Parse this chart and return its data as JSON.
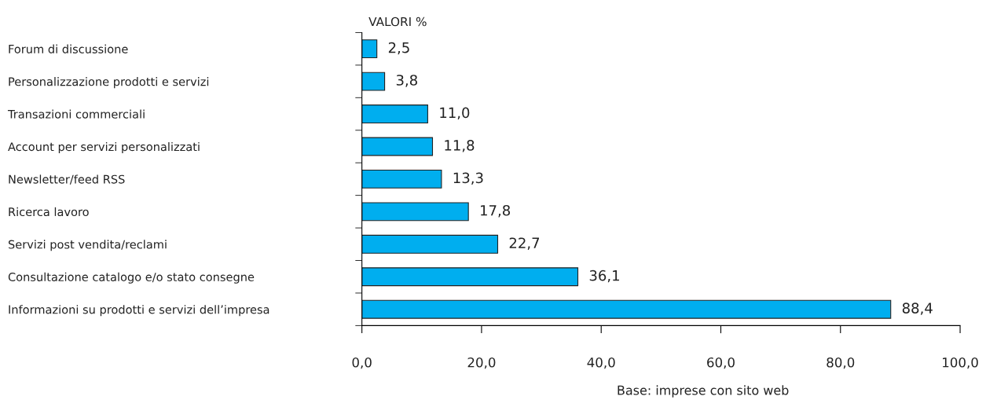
{
  "chart_data": {
    "type": "bar",
    "orientation": "horizontal",
    "title": "VALORI %",
    "categories": [
      "Forum di discussione",
      "Personalizzazione prodotti e servizi",
      "Transazioni commerciali",
      "Account per servizi personalizzati",
      "Newsletter/feed RSS",
      "Ricerca lavoro",
      "Servizi post vendita/reclami",
      "Consultazione catalogo e/o stato consegne",
      "Informazioni su prodotti e servizi dell’impresa"
    ],
    "values": [
      2.5,
      3.8,
      11.0,
      11.8,
      13.3,
      17.8,
      22.7,
      36.1,
      88.4
    ],
    "value_labels": [
      "2,5",
      "3,8",
      "11,0",
      "11,8",
      "13,3",
      "17,8",
      "22,7",
      "36,1",
      "88,4"
    ],
    "color": "#00aeef",
    "xlim": [
      0,
      100
    ],
    "xticks": [
      {
        "value": 0,
        "label": "0,0"
      },
      {
        "value": 20,
        "label": "20,0"
      },
      {
        "value": 40,
        "label": "40,0"
      },
      {
        "value": 60,
        "label": "60,0"
      },
      {
        "value": 80,
        "label": "80,0"
      },
      {
        "value": 100,
        "label": "100,0"
      }
    ],
    "grid": false,
    "legend": false,
    "annotations": [
      "Base: imprese con sito web"
    ]
  }
}
